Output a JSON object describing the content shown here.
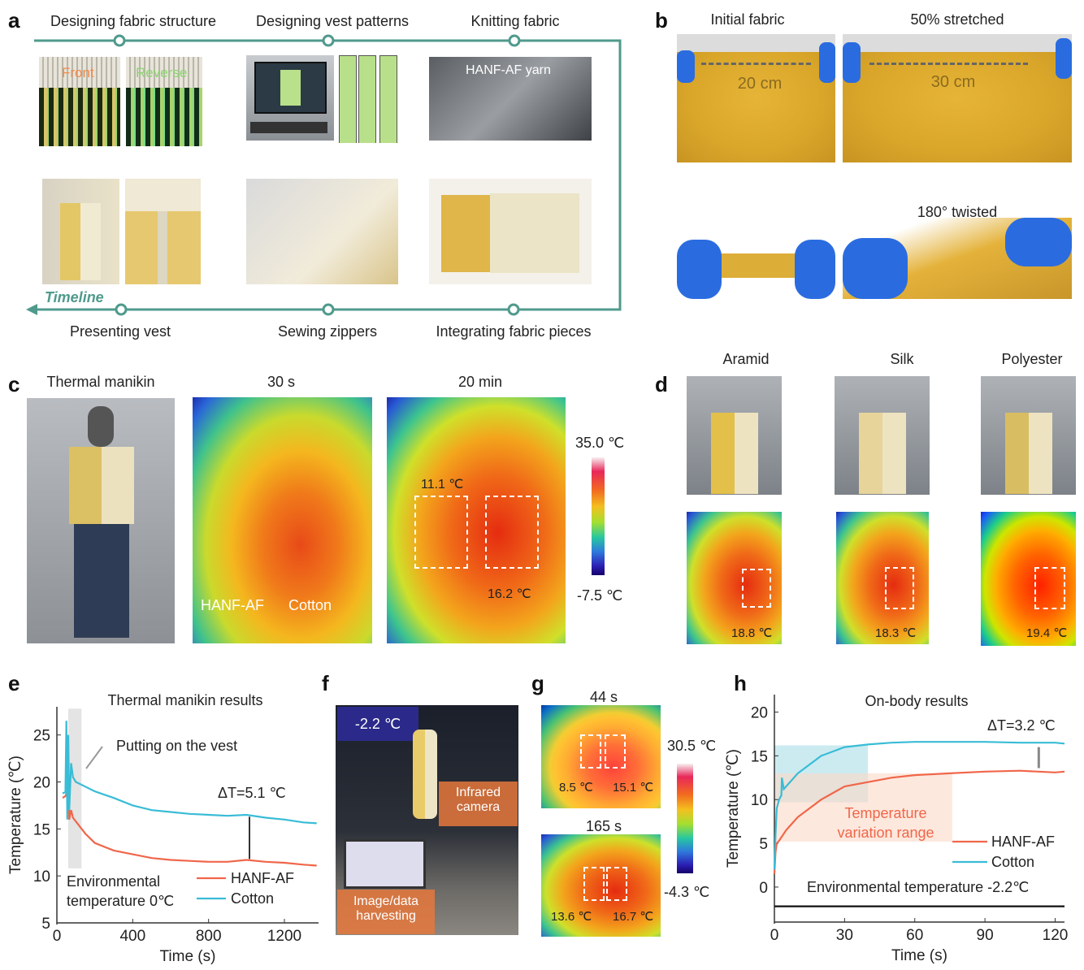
{
  "panel_labels": {
    "a": "a",
    "b": "b",
    "c": "c",
    "d": "d",
    "e": "e",
    "f": "f",
    "g": "g",
    "h": "h"
  },
  "a": {
    "steps_top": [
      "Designing fabric structure",
      "Designing vest patterns",
      "Knitting fabric"
    ],
    "steps_bottom": [
      "Presenting vest",
      "Sewing zippers",
      "Integrating fabric pieces"
    ],
    "front": "Front",
    "reverse": "Reverse",
    "yarn": "HANF-AF yarn",
    "timeline": "Timeline",
    "colors": {
      "timeline": "#4f9a8c",
      "front": "#f08a4b",
      "reverse": "#8bd56f"
    }
  },
  "b": {
    "initial": "Initial fabric",
    "stretched": "50% stretched",
    "len1": "20 cm",
    "len2": "30 cm",
    "twisted": "180° twisted"
  },
  "c": {
    "manikin": "Thermal manikin",
    "t1": "30 s",
    "t2": "20 min",
    "max": "35.0 ℃",
    "min": "-7.5 ℃",
    "hanf": "HANF-AF",
    "cotton": "Cotton",
    "v1": "11.1 ℃",
    "v2": "16.2 ℃"
  },
  "d": {
    "labels": [
      "Aramid",
      "Silk",
      "Polyester"
    ],
    "values": [
      "18.8 ℃",
      "18.3 ℃",
      "19.4 ℃"
    ]
  },
  "f": {
    "temp": "-2.2 ℃",
    "camera": "Infrared camera",
    "harvest": "Image/data harvesting"
  },
  "g": {
    "t1": "44 s",
    "t2": "165 s",
    "max": "30.5 ℃",
    "min": "-4.3 ℃",
    "v44": [
      "8.5 ℃",
      "15.1 ℃"
    ],
    "v165": [
      "13.6 ℃",
      "16.7 ℃"
    ]
  },
  "chart_data": [
    {
      "id": "e",
      "type": "line",
      "title": "Thermal manikin results",
      "xlabel": "Time (s)",
      "ylabel": "Temperature (℃)",
      "xlim": [
        0,
        1380
      ],
      "ylim": [
        5,
        28
      ],
      "xticks": [
        0,
        400,
        800,
        1200
      ],
      "yticks": [
        5,
        10,
        15,
        20,
        25
      ],
      "annotations": {
        "vest": "Putting on the vest",
        "delta": "ΔT=5.1 ℃",
        "env": "Environmental",
        "env2": "temperature 0℃"
      },
      "series": [
        {
          "name": "HANF-AF",
          "color": "#f0664a",
          "x": [
            30,
            45,
            55,
            60,
            65,
            75,
            85,
            100,
            150,
            200,
            300,
            400,
            500,
            600,
            700,
            800,
            900,
            1000,
            1100,
            1200,
            1300,
            1370
          ],
          "y": [
            18.3,
            18.5,
            19,
            22,
            16,
            17,
            16.2,
            15.8,
            14.5,
            13.5,
            12.7,
            12.3,
            11.9,
            11.7,
            11.6,
            11.5,
            11.5,
            11.7,
            11.5,
            11.4,
            11.2,
            11.1
          ]
        },
        {
          "name": "Cotton",
          "color": "#39bcd6",
          "x": [
            30,
            45,
            50,
            55,
            60,
            65,
            75,
            85,
            100,
            150,
            200,
            300,
            400,
            500,
            600,
            700,
            800,
            900,
            1000,
            1100,
            1200,
            1300,
            1370
          ],
          "y": [
            18.8,
            18.9,
            26.5,
            16,
            25,
            17,
            22,
            20.5,
            20,
            19.5,
            19,
            18.3,
            17.5,
            17,
            16.8,
            16.6,
            16.5,
            16.4,
            16.5,
            16.2,
            16.0,
            15.7,
            15.6
          ]
        }
      ]
    },
    {
      "id": "h",
      "type": "line",
      "title": "On-body results",
      "xlabel": "Time (s)",
      "ylabel": "Temperature (℃)",
      "xlim": [
        0,
        124
      ],
      "ylim": [
        -4,
        22
      ],
      "xticks": [
        0,
        30,
        60,
        90,
        120
      ],
      "yticks": [
        0,
        5,
        10,
        15,
        20
      ],
      "annotations": {
        "delta": "ΔT=3.2 ℃",
        "range1": "Temperature",
        "range2": "variation range",
        "env": "Environmental temperature -2.2℃"
      },
      "series": [
        {
          "name": "HANF-AF",
          "color": "#f0664a",
          "x": [
            0,
            0.5,
            1,
            2,
            5,
            10,
            20,
            30,
            40,
            50,
            60,
            75,
            90,
            105,
            120,
            124
          ],
          "y": [
            1.5,
            4,
            5,
            5.3,
            6.5,
            8,
            10,
            11.5,
            12,
            12.5,
            12.8,
            13,
            13.2,
            13.3,
            13.1,
            13.2
          ]
        },
        {
          "name": "Cotton",
          "color": "#39bcd6",
          "x": [
            0,
            0.5,
            1,
            2,
            3,
            3.2,
            4,
            5,
            10,
            20,
            30,
            40,
            50,
            60,
            75,
            90,
            105,
            120,
            124
          ],
          "y": [
            2,
            6,
            9,
            10,
            10.5,
            12.5,
            11.2,
            11.5,
            13,
            15,
            16,
            16.3,
            16.5,
            16.6,
            16.6,
            16.6,
            16.5,
            16.5,
            16.4
          ]
        },
        {
          "name": "Environmental",
          "color": "#111111",
          "x": [
            0,
            124
          ],
          "y": [
            -2.2,
            -2.2
          ]
        }
      ]
    }
  ]
}
